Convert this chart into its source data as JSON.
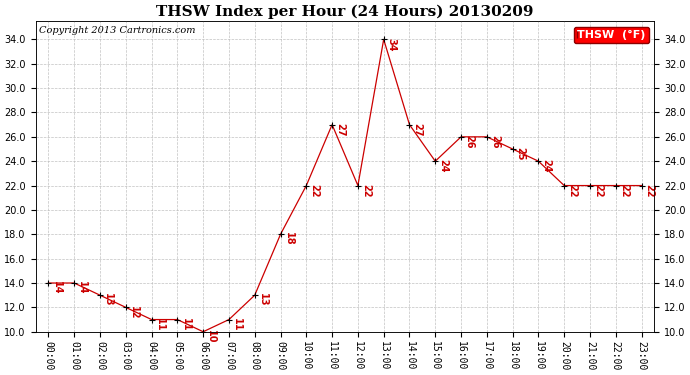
{
  "title": "THSW Index per Hour (24 Hours) 20130209",
  "copyright": "Copyright 2013 Cartronics.com",
  "legend_label": "THSW  (°F)",
  "hours": [
    "00:00",
    "01:00",
    "02:00",
    "03:00",
    "04:00",
    "05:00",
    "06:00",
    "07:00",
    "08:00",
    "09:00",
    "10:00",
    "11:00",
    "12:00",
    "13:00",
    "14:00",
    "15:00",
    "16:00",
    "17:00",
    "18:00",
    "19:00",
    "20:00",
    "21:00",
    "22:00",
    "23:00"
  ],
  "values": [
    14,
    14,
    13,
    12,
    11,
    11,
    10,
    11,
    13,
    18,
    22,
    27,
    22,
    34,
    27,
    24,
    26,
    26,
    25,
    24,
    22,
    22,
    22,
    22
  ],
  "line_color": "#cc0000",
  "dot_color": "#000000",
  "label_color": "#cc0000",
  "grid_color": "#bbbbbb",
  "background_color": "#ffffff",
  "ylim_min": 10.0,
  "ylim_max": 35.5,
  "yticks": [
    10.0,
    12.0,
    14.0,
    16.0,
    18.0,
    20.0,
    22.0,
    24.0,
    26.0,
    28.0,
    30.0,
    32.0,
    34.0
  ],
  "title_fontsize": 11,
  "copyright_fontsize": 7,
  "legend_fontsize": 8,
  "label_fontsize": 7,
  "tick_fontsize": 7
}
